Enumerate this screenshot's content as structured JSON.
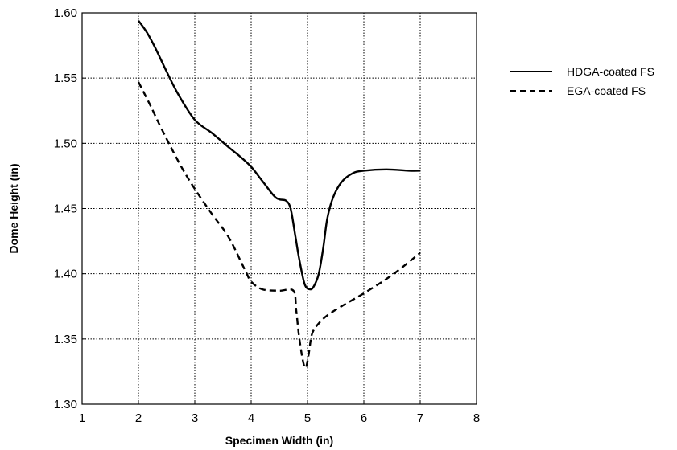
{
  "chart_data": {
    "type": "line",
    "title": "",
    "xlabel": "Specimen Width (in)",
    "ylabel": "Dome Height (in)",
    "xlim": [
      1,
      8
    ],
    "ylim": [
      1.3,
      1.6
    ],
    "x_ticks": [
      "1",
      "2",
      "3",
      "4",
      "5",
      "6",
      "7",
      "8"
    ],
    "y_ticks": [
      "1.30",
      "1.35",
      "1.40",
      "1.45",
      "1.50",
      "1.55",
      "1.60"
    ],
    "grid": true,
    "legend_position": "top-right, outside plot",
    "series": [
      {
        "name": "HDGA-coated FS",
        "style": "solid",
        "color": "#000000",
        "x": [
          2.0,
          2.15,
          2.3,
          2.5,
          2.7,
          3.0,
          3.3,
          3.6,
          3.8,
          4.0,
          4.2,
          4.4,
          4.5,
          4.62,
          4.7,
          4.78,
          4.85,
          4.95,
          5.05,
          5.12,
          5.2,
          5.28,
          5.35,
          5.45,
          5.6,
          5.8,
          6.0,
          6.4,
          6.8,
          7.0
        ],
        "y": [
          1.594,
          1.585,
          1.573,
          1.555,
          1.538,
          1.518,
          1.508,
          1.497,
          1.49,
          1.482,
          1.471,
          1.46,
          1.457,
          1.456,
          1.45,
          1.43,
          1.412,
          1.392,
          1.388,
          1.391,
          1.4,
          1.42,
          1.442,
          1.458,
          1.47,
          1.477,
          1.479,
          1.48,
          1.479,
          1.479
        ]
      },
      {
        "name": "EGA-coated FS",
        "style": "dashed",
        "color": "#000000",
        "x": [
          2.0,
          2.2,
          2.4,
          2.6,
          2.8,
          3.0,
          3.3,
          3.6,
          3.9,
          4.0,
          4.2,
          4.5,
          4.75,
          4.8,
          4.85,
          4.92,
          4.97,
          5.02,
          5.06,
          5.1,
          5.2,
          5.35,
          5.6,
          6.0,
          6.5,
          7.0
        ],
        "y": [
          1.547,
          1.53,
          1.512,
          1.495,
          1.479,
          1.465,
          1.446,
          1.428,
          1.402,
          1.394,
          1.388,
          1.387,
          1.387,
          1.372,
          1.352,
          1.333,
          1.328,
          1.338,
          1.35,
          1.356,
          1.362,
          1.368,
          1.375,
          1.385,
          1.399,
          1.416
        ]
      }
    ]
  }
}
